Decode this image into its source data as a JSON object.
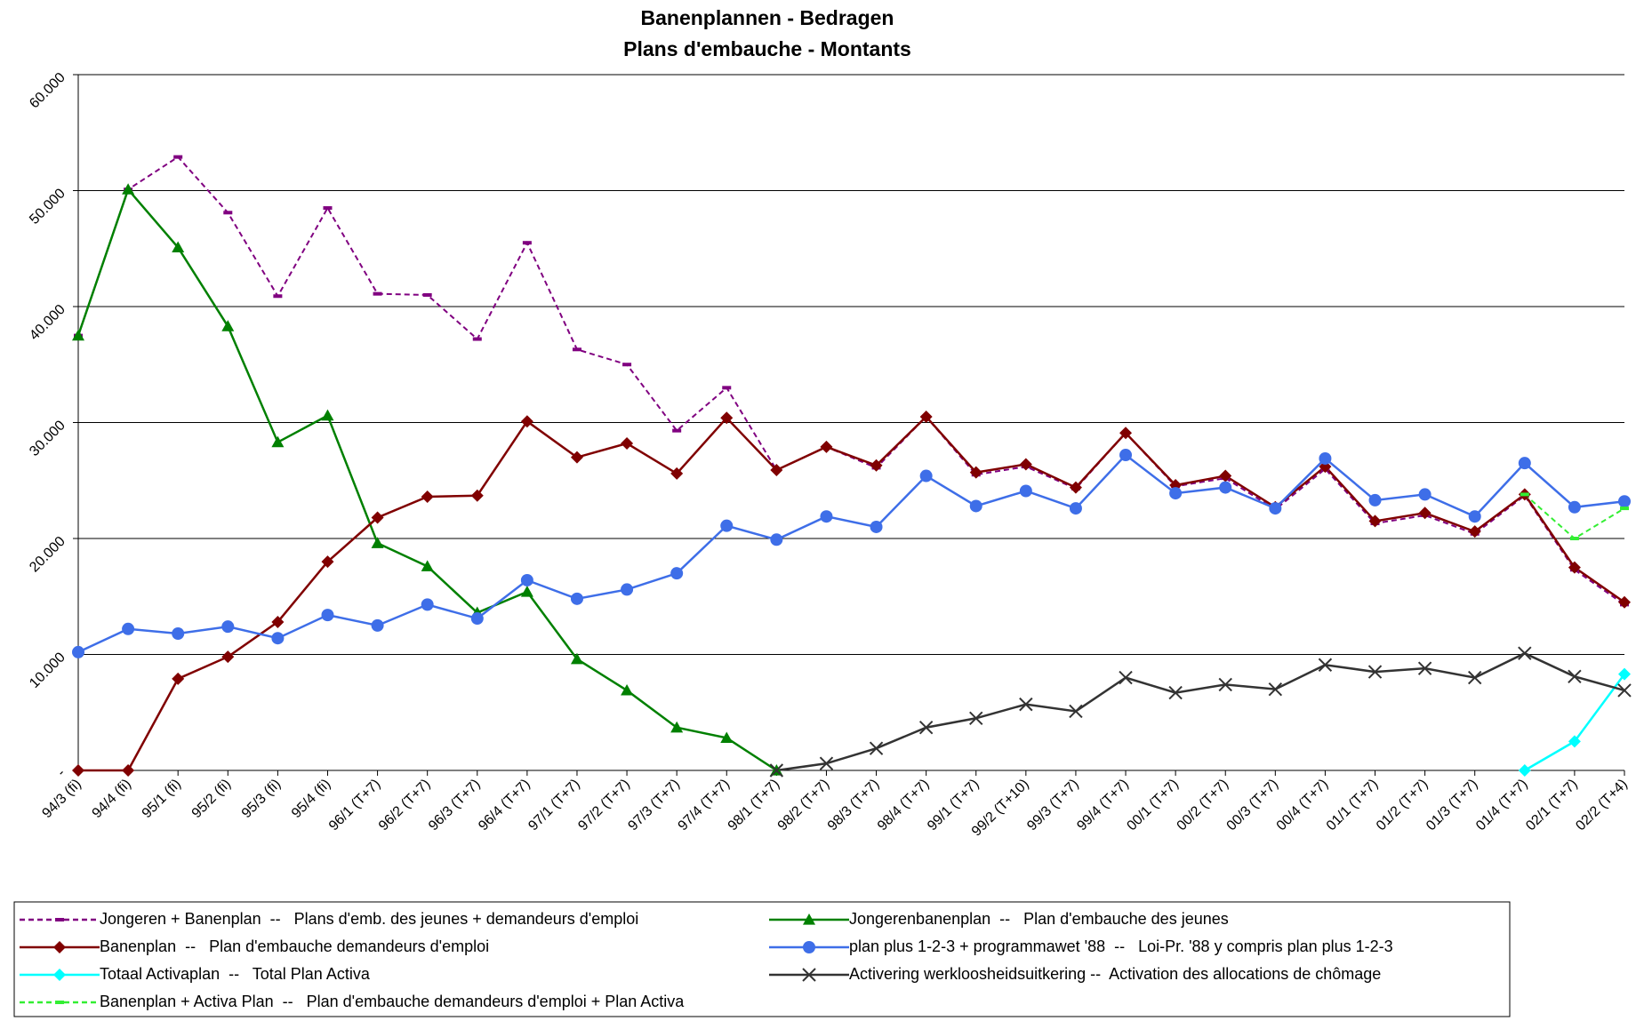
{
  "chart_data": {
    "type": "line",
    "title": "Banenplannen - Bedragen",
    "subtitle": "Plans d'embauche - Montants",
    "categories": [
      "94/3 (fi)",
      "94/4 (fi)",
      "95/1 (fi)",
      "95/2 (fi)",
      "95/3 (fi)",
      "95/4 (fi)",
      "96/1 (T+7)",
      "96/2 (T+7)",
      "96/3 (T+7)",
      "96/4 (T+7)",
      "97/1 (T+7)",
      "97/2 (T+7)",
      "97/3 (T+7)",
      "97/4 (T+7)",
      "98/1 (T+7)",
      "98/2 (T+7)",
      "98/3 (T+7)",
      "98/4 (T+7)",
      "99/1 (T+7)",
      "99/2 (T+10)",
      "99/3 (T+7)",
      "99/4 (T+7)",
      "00/1 (T+7)",
      "00/2 (T+7)",
      "00/3 (T+7)",
      "00/4 (T+7)",
      "01/1 (T+7)",
      "01/2 (T+7)",
      "01/3 (T+7)",
      "01/4 (T+7)",
      "02/1 (T+7)",
      "02/2 (T+4)"
    ],
    "ylim": [
      0,
      60000
    ],
    "yticks": [
      {
        "value": 0,
        "label": "-"
      },
      {
        "value": 10000,
        "label": "10.000"
      },
      {
        "value": 20000,
        "label": "20.000"
      },
      {
        "value": 30000,
        "label": "30.000"
      },
      {
        "value": 40000,
        "label": "40.000"
      },
      {
        "value": 50000,
        "label": "50.000"
      },
      {
        "value": 60000,
        "label": "60.000"
      }
    ],
    "grid": true,
    "series": [
      {
        "name": "Jongeren + Banenplan  --   Plans d'emb. des jeunes + demandeurs d'emploi",
        "color": "#800080",
        "dashed": true,
        "marker": "dash",
        "values": [
          37500,
          50100,
          52900,
          48100,
          40900,
          48500,
          41100,
          41000,
          37200,
          45500,
          36300,
          35000,
          29300,
          33000,
          25900,
          27900,
          26100,
          30500,
          25500,
          26200,
          24300,
          29100,
          24500,
          25200,
          22500,
          26000,
          21300,
          22000,
          20400,
          23700,
          17300,
          14300
        ]
      },
      {
        "name": "Jongerenbanenplan  --   Plan d'embauche des jeunes",
        "color": "#008000",
        "dashed": false,
        "marker": "triangle",
        "values": [
          37500,
          50100,
          45100,
          38300,
          28300,
          30600,
          19600,
          17600,
          13600,
          15400,
          9600,
          6900,
          3700,
          2800,
          0,
          null,
          null,
          null,
          null,
          null,
          null,
          null,
          null,
          null,
          null,
          null,
          null,
          null,
          null,
          null,
          null,
          null
        ]
      },
      {
        "name": "Banenplan  --   Plan d'embauche demandeurs d'emploi",
        "color": "#800000",
        "dashed": false,
        "marker": "diamond",
        "values": [
          0,
          0,
          7900,
          9800,
          12800,
          18000,
          21800,
          23600,
          23700,
          30100,
          27000,
          28200,
          25600,
          30400,
          25900,
          27900,
          26300,
          30500,
          25700,
          26400,
          24400,
          29100,
          24600,
          25400,
          22700,
          26200,
          21500,
          22200,
          20600,
          23800,
          17500,
          14500
        ]
      },
      {
        "name": "plan plus 1-2-3 + programmawet '88  --   Loi-Pr. '88 y compris plan plus 1-2-3",
        "color": "#3e6ee8",
        "dashed": false,
        "marker": "circle",
        "values": [
          10200,
          12200,
          11800,
          12400,
          11400,
          13400,
          12500,
          14300,
          13100,
          16400,
          14800,
          15600,
          17000,
          21100,
          19900,
          21900,
          21000,
          25400,
          22800,
          24100,
          22600,
          27200,
          23900,
          24400,
          22600,
          26900,
          23300,
          23800,
          21900,
          26500,
          22700,
          23200
        ]
      },
      {
        "name": "Totaal Activaplan  --   Total Plan Activa",
        "color": "#00ffff",
        "dashed": false,
        "marker": "diamond",
        "values": [
          null,
          null,
          null,
          null,
          null,
          null,
          null,
          null,
          null,
          null,
          null,
          null,
          null,
          null,
          null,
          null,
          null,
          null,
          null,
          null,
          null,
          null,
          null,
          null,
          null,
          null,
          null,
          null,
          null,
          0,
          2500,
          8300
        ]
      },
      {
        "name": "Activering werkloosheidsuitkering --  Activation des allocations de chômage",
        "color": "#333333",
        "dashed": false,
        "marker": "x",
        "values": [
          null,
          null,
          null,
          null,
          null,
          null,
          null,
          null,
          null,
          null,
          null,
          null,
          null,
          null,
          0,
          600,
          1900,
          3700,
          4500,
          5700,
          5100,
          8000,
          6700,
          7400,
          7000,
          9100,
          8500,
          8800,
          8000,
          10100,
          8100,
          6900
        ]
      },
      {
        "name": "Banenplan + Activa Plan  --   Plan d'embauche demandeurs d'emploi + Plan Activa",
        "color": "#33ee33",
        "dashed": true,
        "marker": "dash",
        "values": [
          null,
          null,
          null,
          null,
          null,
          null,
          null,
          null,
          null,
          null,
          null,
          null,
          null,
          null,
          null,
          null,
          null,
          null,
          null,
          null,
          null,
          null,
          null,
          null,
          null,
          null,
          null,
          null,
          null,
          23800,
          20000,
          22600
        ]
      }
    ]
  }
}
